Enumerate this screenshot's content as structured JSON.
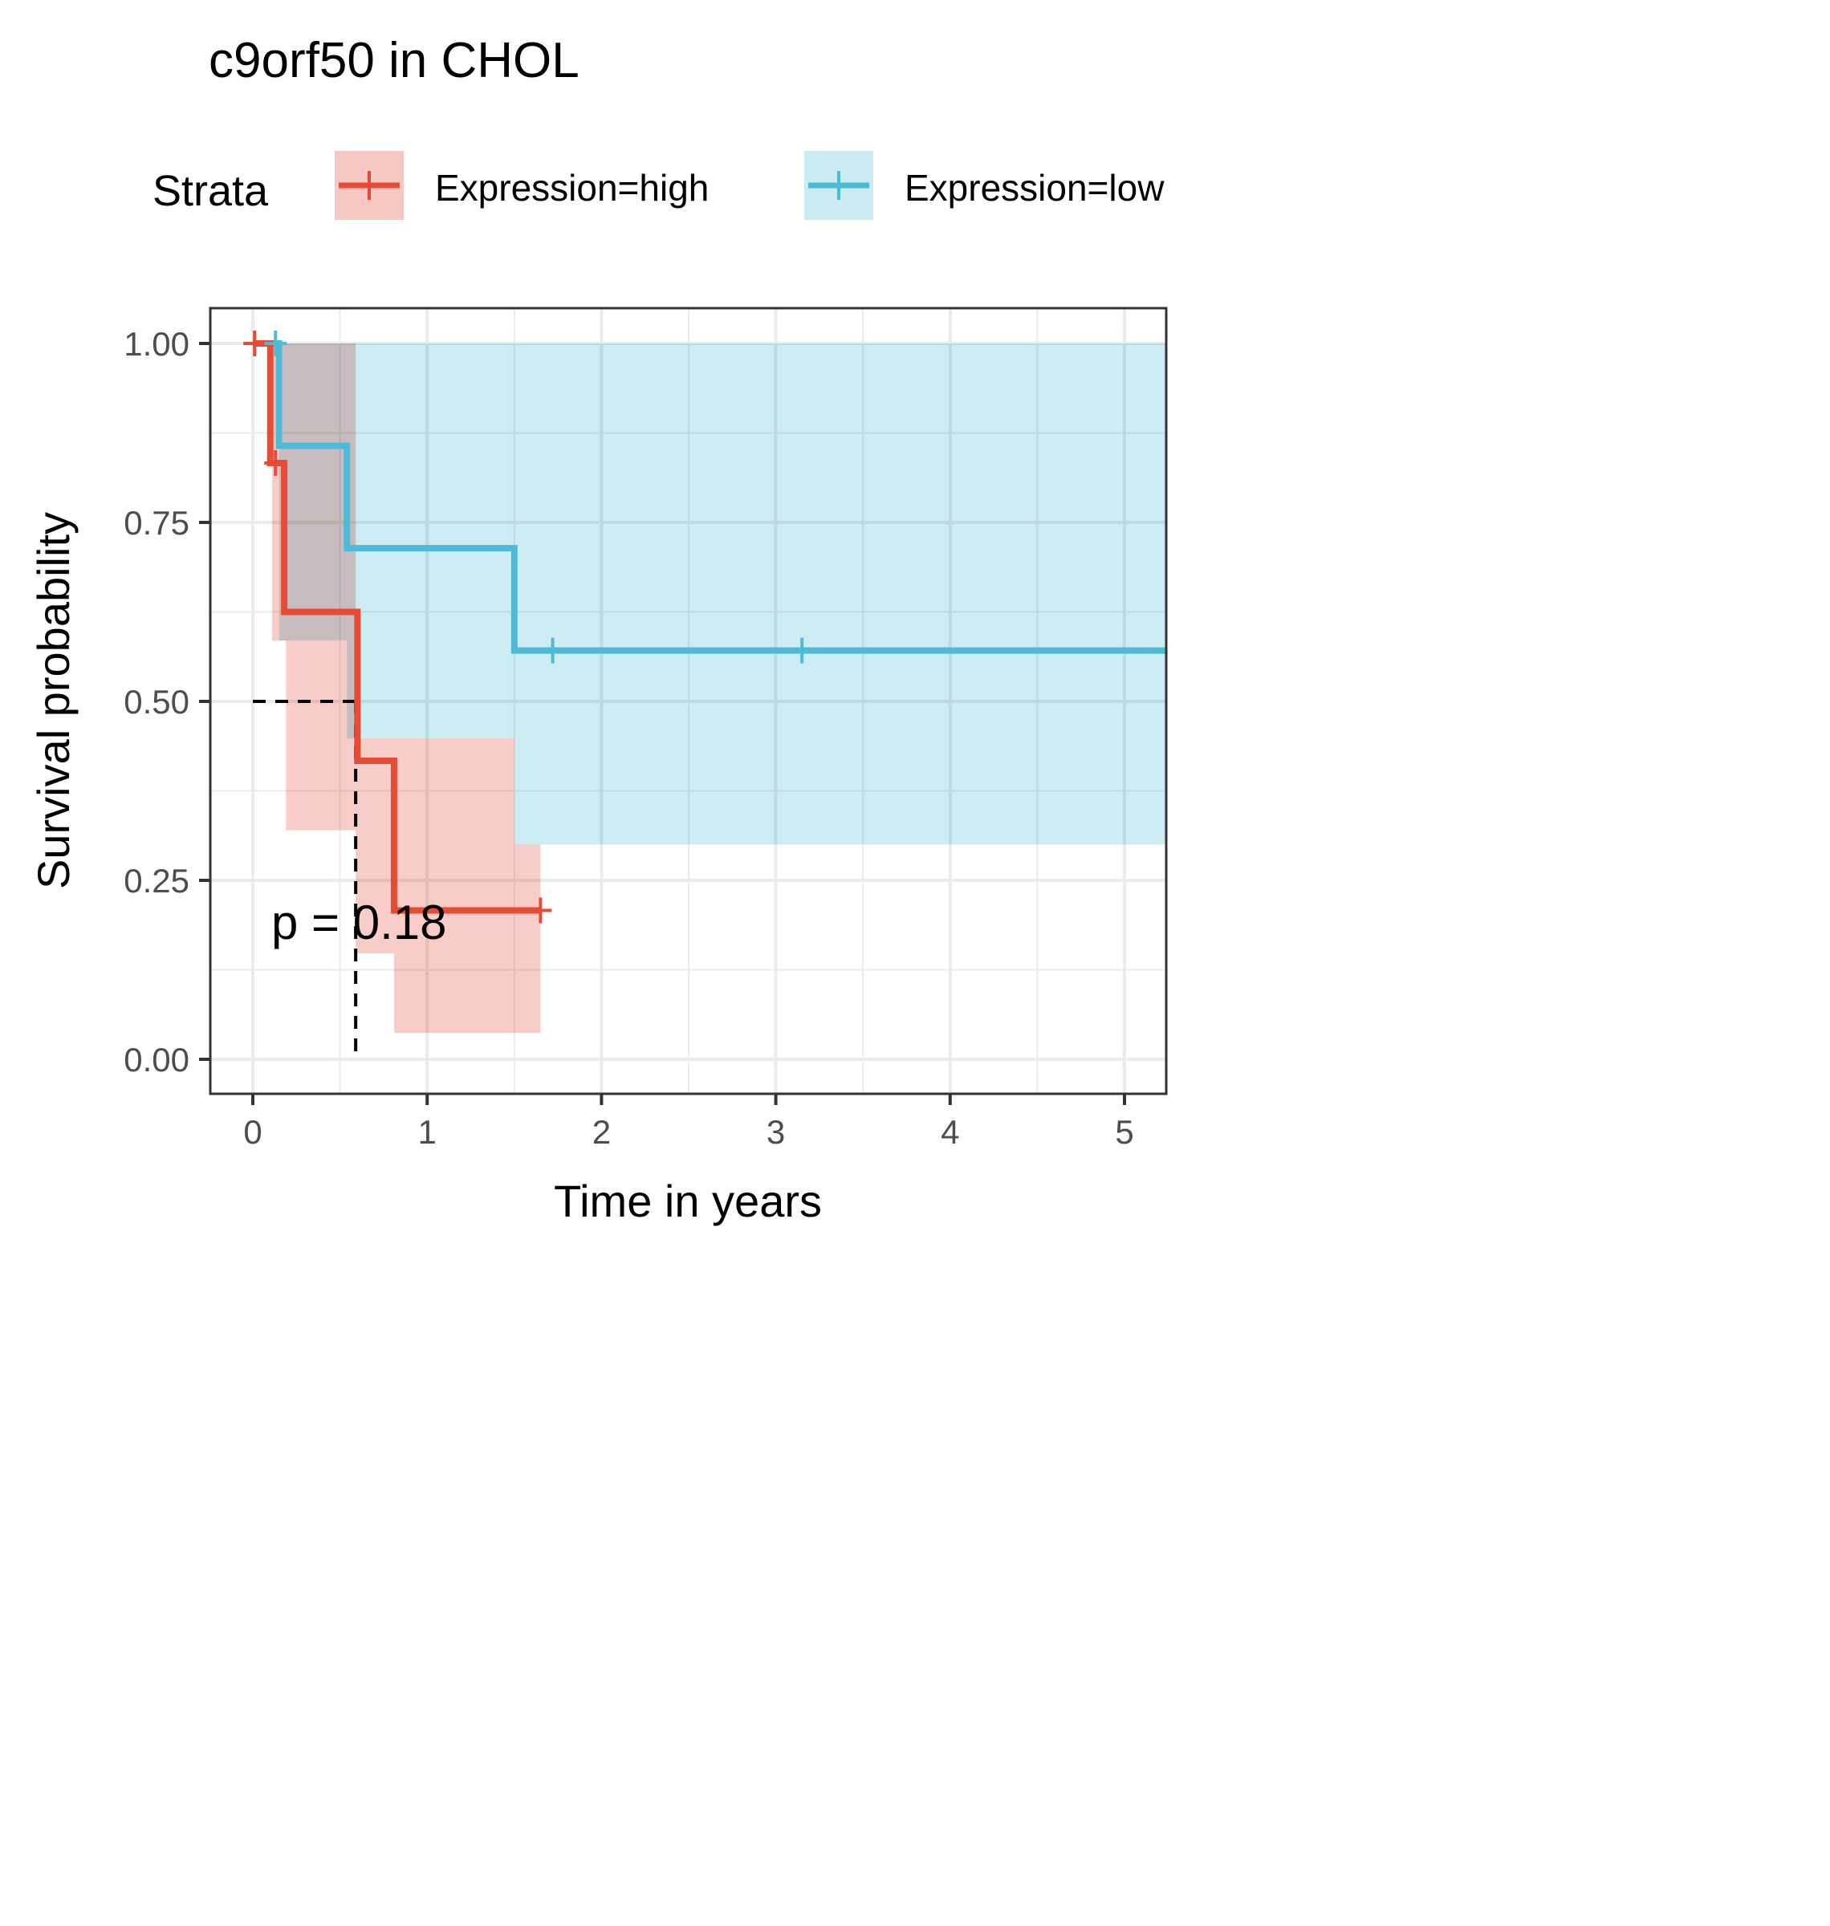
{
  "chart_data": {
    "type": "line",
    "subtype": "kaplan-meier",
    "title": "c9orf50 in CHOL",
    "xlabel": "Time in years",
    "ylabel": "Survival probability",
    "xlim": [
      -0.25,
      5.25
    ],
    "ylim": [
      -0.05,
      1.05
    ],
    "x_ticks": [
      "0",
      "1",
      "2",
      "3",
      "4",
      "5"
    ],
    "y_ticks": [
      "0.00",
      "0.25",
      "0.50",
      "0.75",
      "1.00"
    ],
    "grid": true,
    "legend": {
      "title": "Strata",
      "position": "top"
    },
    "annotation": "p = 0.18",
    "median_line": {
      "x": 0.59,
      "y": 0.5
    },
    "series": [
      {
        "name": "Expression=high",
        "color": "#E64B35",
        "fill": "#F2A49A",
        "steps": [
          {
            "t": 0.0,
            "s": 1.0
          },
          {
            "t": 0.1,
            "s": 0.833
          },
          {
            "t": 0.18,
            "s": 0.625
          },
          {
            "t": 0.6,
            "s": 0.417
          },
          {
            "t": 0.81,
            "s": 0.208
          },
          {
            "t": 1.65,
            "s": 0.208
          }
        ],
        "ci": [
          {
            "t": 0.0,
            "lo": 1.0,
            "hi": 1.0
          },
          {
            "t": 0.11,
            "lo": 0.585,
            "hi": 1.0
          },
          {
            "t": 0.19,
            "lo": 0.32,
            "hi": 1.0
          },
          {
            "t": 0.59,
            "lo": 0.148,
            "hi": 0.448
          },
          {
            "t": 0.81,
            "lo": 0.037,
            "hi": 0.448
          },
          {
            "t": 1.5,
            "lo": 0.037,
            "hi": 0.3
          },
          {
            "t": 1.65,
            "lo": 0.037,
            "hi": 0.3
          }
        ],
        "censored": [
          {
            "t": 0.01,
            "s": 1.0
          },
          {
            "t": 0.13,
            "s": 0.833
          },
          {
            "t": 1.65,
            "s": 0.208
          }
        ]
      },
      {
        "name": "Expression=low",
        "color": "#4DBBD5",
        "fill": "#A6DDEA",
        "steps": [
          {
            "t": 0.0,
            "s": 1.0
          },
          {
            "t": 0.15,
            "s": 0.857
          },
          {
            "t": 0.54,
            "s": 0.714
          },
          {
            "t": 1.5,
            "s": 0.571
          },
          {
            "t": 5.25,
            "s": 0.571
          }
        ],
        "ci": [
          {
            "t": 0.0,
            "lo": 1.0,
            "hi": 1.0
          },
          {
            "t": 0.15,
            "lo": 0.585,
            "hi": 1.0
          },
          {
            "t": 0.54,
            "lo": 0.448,
            "hi": 1.0
          },
          {
            "t": 1.5,
            "lo": 0.3,
            "hi": 1.0
          },
          {
            "t": 5.25,
            "lo": 0.3,
            "hi": 1.0
          }
        ],
        "censored": [
          {
            "t": 0.13,
            "s": 1.0
          },
          {
            "t": 1.72,
            "s": 0.571
          },
          {
            "t": 3.15,
            "s": 0.571
          }
        ]
      }
    ]
  }
}
